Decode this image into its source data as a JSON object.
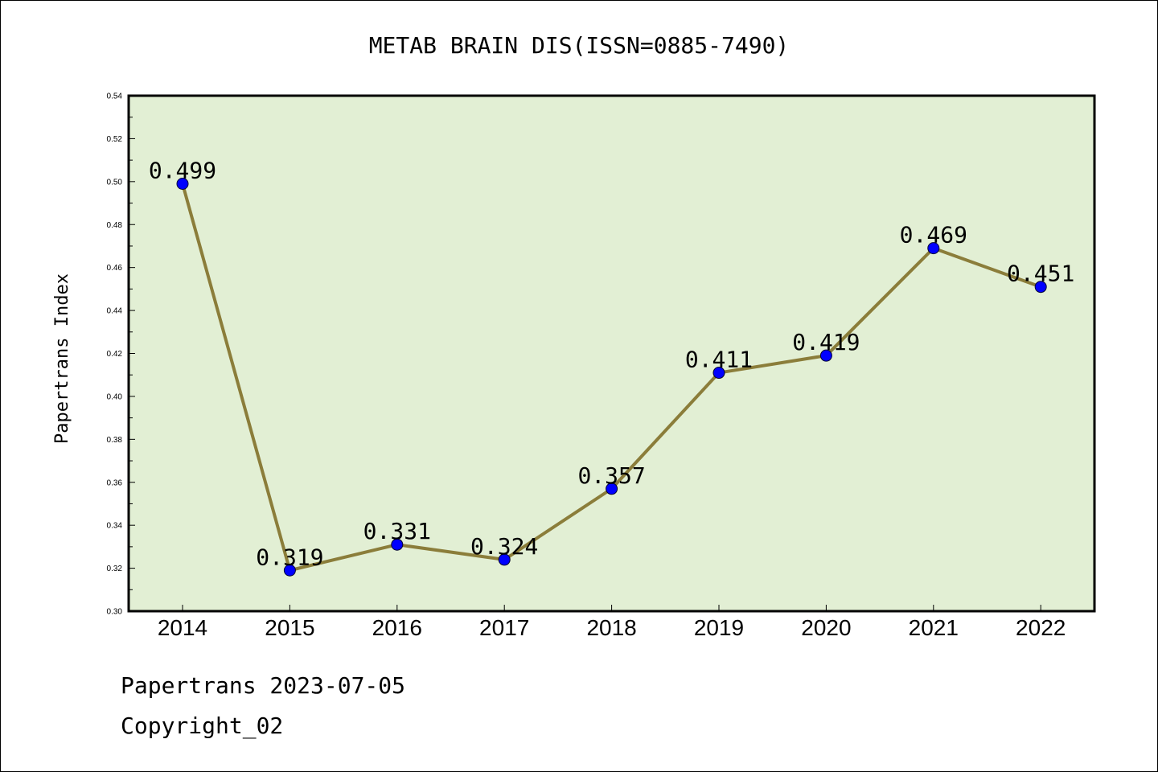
{
  "chart_data": {
    "type": "line",
    "title": "METAB BRAIN DIS(ISSN=0885-7490)",
    "xlabel": "",
    "ylabel": "Papertrans Index",
    "categories": [
      "2014",
      "2015",
      "2016",
      "2017",
      "2018",
      "2019",
      "2020",
      "2021",
      "2022"
    ],
    "series": [
      {
        "values": [
          0.499,
          0.319,
          0.331,
          0.324,
          0.357,
          0.411,
          0.419,
          0.469,
          0.451
        ],
        "labels": [
          "0.499",
          "0.319",
          "0.331",
          "0.324",
          "0.357",
          "0.411",
          "0.419",
          "0.469",
          "0.451"
        ]
      }
    ],
    "ylim": [
      0.3,
      0.54
    ],
    "yticks": [
      "0.30",
      "0.32",
      "0.34",
      "0.36",
      "0.38",
      "0.40",
      "0.42",
      "0.44",
      "0.46",
      "0.48",
      "0.50",
      "0.52",
      "0.54"
    ],
    "grid": false,
    "colors": {
      "plot_background": "#e2efd4",
      "line": "#8b7d3a",
      "marker": "#0000ff"
    }
  },
  "footer": {
    "source": "Papertrans 2023-07-05",
    "copyright": "Copyright_02"
  }
}
